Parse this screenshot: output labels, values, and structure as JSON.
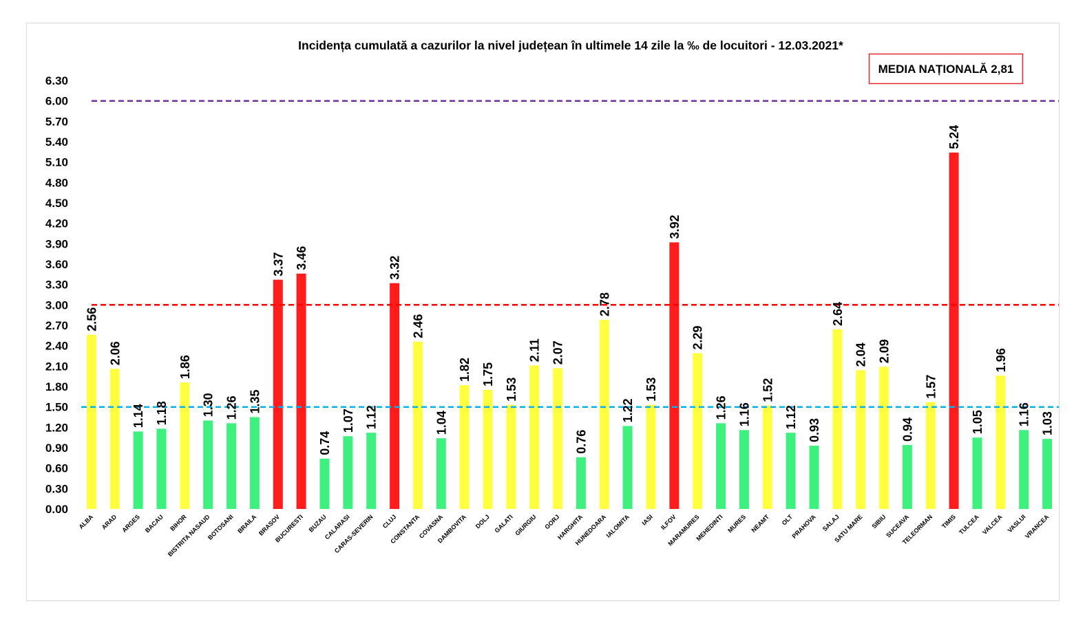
{
  "chart_data": {
    "type": "bar",
    "title": "Incidența cumulată a cazurilor la nivel județean în ultimele 14 zile la ‰ de locuitori - 12.03.2021*",
    "xlabel": "",
    "ylabel": "",
    "categories": [
      "ALBA",
      "ARAD",
      "ARGES",
      "BACAU",
      "BIHOR",
      "BISTRITA NASAUD",
      "BOTOSANI",
      "BRAILA",
      "BRASOV",
      "BUCURESTI",
      "BUZAU",
      "CALARASI",
      "CARAS-SEVERIN",
      "CLUJ",
      "CONSTANTA",
      "COVASNA",
      "DAMBOVITA",
      "DOLJ",
      "GALATI",
      "GIURGIU",
      "GORJ",
      "HARGHITA",
      "HUNEDOARA",
      "IALOMITA",
      "IASI",
      "ILFOV",
      "MARAMURES",
      "MEHEDINTI",
      "MURES",
      "NEAMT",
      "OLT",
      "PRAHOVA",
      "SALAJ",
      "SATU MARE",
      "SIBIU",
      "SUCEAVA",
      "TELEORMAN",
      "TIMIS",
      "TULCEA",
      "VALCEA",
      "VASLUI",
      "VRANCEA"
    ],
    "values": [
      2.56,
      2.06,
      1.14,
      1.18,
      1.86,
      1.3,
      1.26,
      1.35,
      3.37,
      3.46,
      0.74,
      1.07,
      1.12,
      3.32,
      2.46,
      1.04,
      1.82,
      1.75,
      1.53,
      2.11,
      2.07,
      0.76,
      2.78,
      1.22,
      1.53,
      3.92,
      2.29,
      1.26,
      1.16,
      1.52,
      1.12,
      0.93,
      2.64,
      2.04,
      2.09,
      0.94,
      1.57,
      5.24,
      1.05,
      1.96,
      1.16,
      1.03
    ],
    "colors": [
      "#FFFF40",
      "#FFFF40",
      "#3EF07D",
      "#3EF07D",
      "#FFFF40",
      "#3EF07D",
      "#3EF07D",
      "#3EF07D",
      "#FF1C1C",
      "#FF1C1C",
      "#3EF07D",
      "#3EF07D",
      "#3EF07D",
      "#FF1C1C",
      "#FFFF40",
      "#3EF07D",
      "#FFFF40",
      "#FFFF40",
      "#FFFF40",
      "#FFFF40",
      "#FFFF40",
      "#3EF07D",
      "#FFFF40",
      "#3EF07D",
      "#FFFF40",
      "#FF1C1C",
      "#FFFF40",
      "#3EF07D",
      "#3EF07D",
      "#FFFF40",
      "#3EF07D",
      "#3EF07D",
      "#FFFF40",
      "#FFFF40",
      "#FFFF40",
      "#3EF07D",
      "#FFFF40",
      "#FF1C1C",
      "#3EF07D",
      "#FFFF40",
      "#3EF07D",
      "#3EF07D"
    ],
    "data_labels": true,
    "ylim": [
      0,
      6.3
    ],
    "yticks": [
      "0.00",
      "0.30",
      "0.60",
      "0.90",
      "1.20",
      "1.50",
      "1.80",
      "2.10",
      "2.40",
      "2.70",
      "3.00",
      "3.30",
      "3.60",
      "3.90",
      "4.20",
      "4.50",
      "4.80",
      "5.10",
      "5.40",
      "5.70",
      "6.00",
      "6.30"
    ],
    "reference_lines": [
      {
        "value": 6.0,
        "color": "#7030A0",
        "style": "dashed"
      },
      {
        "value": 3.0,
        "color": "#FF0000",
        "style": "dashed"
      },
      {
        "value": 1.5,
        "color": "#00B0F0",
        "style": "dashed"
      }
    ],
    "annotation": {
      "text": "MEDIA NAȚIONALĂ 2,81",
      "border_color": "#E3242B"
    },
    "grid": false
  }
}
